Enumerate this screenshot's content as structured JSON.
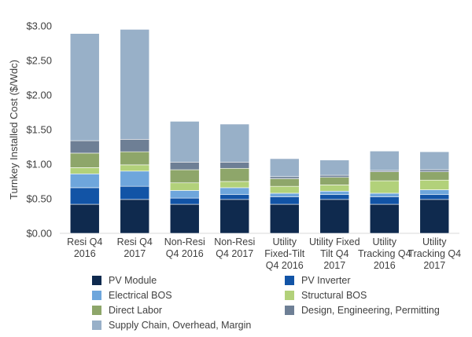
{
  "chart_data": {
    "type": "bar",
    "stacked": true,
    "title": "",
    "xlabel": "",
    "ylabel": "Turnkey Installed Cost ($/Wdc)",
    "ylim": [
      0,
      3.0
    ],
    "yticks": [
      0,
      0.5,
      1.0,
      1.5,
      2.0,
      2.5,
      3.0
    ],
    "ytick_labels": [
      "$0.00",
      "$0.50",
      "$1.00",
      "$1.50",
      "$2.00",
      "$2.50",
      "$3.00"
    ],
    "grid": false,
    "legend_position": "bottom",
    "categories": [
      [
        "Resi Q4",
        "2016"
      ],
      [
        "Resi Q4",
        "2017"
      ],
      [
        "Non-Resi",
        "Q4 2016"
      ],
      [
        "Non-Resi",
        "Q4 2017"
      ],
      [
        "Utility",
        "Fixed-Tilt",
        "Q4 2016"
      ],
      [
        "Utility Fixed",
        "Tilt Q4",
        "2017"
      ],
      [
        "Utility",
        "Tracking Q4",
        "2016"
      ],
      [
        "Utility",
        "Tracking Q4",
        "2017"
      ]
    ],
    "series": [
      {
        "name": "PV Module",
        "color": "#0f2a4e",
        "values": [
          0.42,
          0.49,
          0.42,
          0.49,
          0.42,
          0.49,
          0.42,
          0.49
        ]
      },
      {
        "name": "PV Inverter",
        "color": "#1254a6",
        "values": [
          0.24,
          0.19,
          0.09,
          0.07,
          0.11,
          0.07,
          0.11,
          0.07
        ]
      },
      {
        "name": "Electrical BOS",
        "color": "#6ea6dc",
        "values": [
          0.2,
          0.22,
          0.11,
          0.1,
          0.05,
          0.05,
          0.05,
          0.07
        ]
      },
      {
        "name": "Structural BOS",
        "color": "#b2d17a",
        "values": [
          0.09,
          0.09,
          0.11,
          0.09,
          0.1,
          0.09,
          0.18,
          0.14
        ]
      },
      {
        "name": "Direct Labor",
        "color": "#8ea66a",
        "values": [
          0.21,
          0.19,
          0.19,
          0.19,
          0.11,
          0.11,
          0.13,
          0.12
        ]
      },
      {
        "name": "Design, Engineering, Permitting",
        "color": "#6e7f95",
        "values": [
          0.18,
          0.18,
          0.11,
          0.09,
          0.03,
          0.03,
          0.02,
          0.03
        ]
      },
      {
        "name": "Supply Chain, Overhead, Margin",
        "color": "#98b0c8",
        "values": [
          1.55,
          1.59,
          0.59,
          0.55,
          0.26,
          0.22,
          0.28,
          0.26
        ]
      }
    ]
  }
}
